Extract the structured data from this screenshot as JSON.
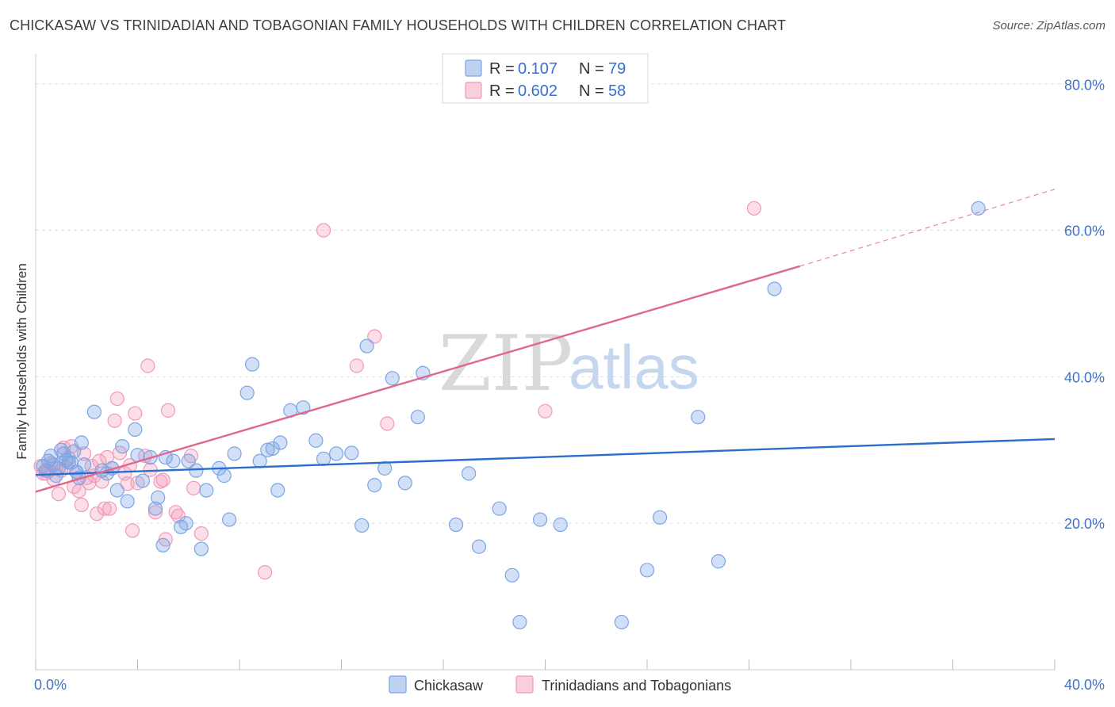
{
  "title": "CHICKASAW VS TRINIDADIAN AND TOBAGONIAN FAMILY HOUSEHOLDS WITH CHILDREN CORRELATION CHART",
  "source": "Source: ZipAtlas.com",
  "watermark": {
    "zip": "ZIP",
    "atlas": "atlas"
  },
  "colors": {
    "blue_fill": "rgba(124,165,228,0.35)",
    "blue_stroke": "#7ca5e4",
    "blue_line": "#2b6dcf",
    "pink_fill": "rgba(244,160,190,0.35)",
    "pink_stroke": "#ef9ab9",
    "pink_line": "#e0688f",
    "grid": "#dddddd",
    "tick_text": "#4472c4"
  },
  "legend": {
    "rows": [
      {
        "r_label": "R =",
        "r_value": "0.107",
        "n_label": "N =",
        "n_value": "79",
        "series": "blue"
      },
      {
        "r_label": "R =",
        "r_value": "0.602",
        "n_label": "N =",
        "n_value": "58",
        "series": "pink"
      }
    ]
  },
  "chart_data": {
    "type": "scatter",
    "title": "CHICKASAW VS TRINIDADIAN AND TOBAGONIAN FAMILY HOUSEHOLDS WITH CHILDREN CORRELATION CHART",
    "xlabel": "",
    "ylabel": "Family Households with Children",
    "xlim": [
      0,
      40
    ],
    "ylim": [
      0,
      83
    ],
    "x_tick_labels": [
      "0.0%",
      "40.0%"
    ],
    "y_ticks": [
      20,
      40,
      60,
      80
    ],
    "y_tick_labels": [
      "20.0%",
      "40.0%",
      "60.0%",
      "80.0%"
    ],
    "legend_position": "top-center",
    "series": [
      {
        "name": "Chickasaw",
        "color": "blue",
        "trend": {
          "x": [
            0,
            40
          ],
          "y": [
            26.6,
            31.5
          ],
          "dashed_from": null
        },
        "points": [
          [
            0.3,
            27.8
          ],
          [
            0.4,
            27.2
          ],
          [
            0.5,
            28.5
          ],
          [
            0.6,
            29.2
          ],
          [
            0.7,
            28.0
          ],
          [
            0.8,
            26.5
          ],
          [
            0.9,
            27.5
          ],
          [
            1.0,
            30.0
          ],
          [
            1.1,
            29.5
          ],
          [
            1.2,
            28.6
          ],
          [
            1.3,
            28.3
          ],
          [
            1.5,
            29.8
          ],
          [
            1.6,
            27.0
          ],
          [
            1.7,
            26.2
          ],
          [
            1.8,
            31.0
          ],
          [
            1.9,
            28.0
          ],
          [
            2.3,
            35.2
          ],
          [
            2.6,
            27.2
          ],
          [
            2.8,
            26.8
          ],
          [
            3.0,
            27.5
          ],
          [
            3.2,
            24.5
          ],
          [
            3.4,
            30.5
          ],
          [
            3.6,
            23.0
          ],
          [
            3.9,
            32.8
          ],
          [
            4.0,
            29.3
          ],
          [
            4.2,
            25.8
          ],
          [
            4.5,
            29.0
          ],
          [
            4.7,
            22.0
          ],
          [
            5.1,
            29.0
          ],
          [
            4.8,
            23.5
          ],
          [
            5.0,
            17.0
          ],
          [
            5.4,
            28.5
          ],
          [
            5.7,
            19.5
          ],
          [
            5.9,
            20.0
          ],
          [
            6.0,
            28.5
          ],
          [
            6.3,
            27.2
          ],
          [
            6.5,
            16.5
          ],
          [
            6.7,
            24.5
          ],
          [
            7.2,
            27.5
          ],
          [
            7.4,
            26.5
          ],
          [
            7.6,
            20.5
          ],
          [
            7.8,
            29.5
          ],
          [
            8.3,
            37.8
          ],
          [
            8.5,
            41.7
          ],
          [
            8.8,
            28.5
          ],
          [
            9.1,
            30.0
          ],
          [
            9.3,
            30.2
          ],
          [
            9.5,
            24.5
          ],
          [
            9.6,
            31.0
          ],
          [
            10.5,
            35.8
          ],
          [
            10.0,
            35.4
          ],
          [
            11.0,
            31.3
          ],
          [
            11.3,
            28.8
          ],
          [
            11.8,
            29.5
          ],
          [
            12.4,
            29.6
          ],
          [
            12.8,
            19.7
          ],
          [
            13.0,
            44.2
          ],
          [
            13.3,
            25.2
          ],
          [
            13.7,
            27.5
          ],
          [
            14.0,
            39.8
          ],
          [
            14.5,
            25.5
          ],
          [
            15.0,
            34.5
          ],
          [
            15.2,
            40.5
          ],
          [
            16.5,
            19.8
          ],
          [
            17.0,
            26.8
          ],
          [
            17.4,
            16.8
          ],
          [
            18.2,
            22.0
          ],
          [
            18.7,
            12.9
          ],
          [
            19.0,
            6.5
          ],
          [
            19.8,
            20.5
          ],
          [
            20.6,
            19.8
          ],
          [
            23.0,
            6.5
          ],
          [
            24.0,
            13.6
          ],
          [
            24.5,
            20.8
          ],
          [
            26.0,
            34.5
          ],
          [
            26.8,
            14.8
          ],
          [
            29.0,
            52.0
          ],
          [
            37.0,
            63.0
          ],
          [
            1.4,
            28.3
          ]
        ]
      },
      {
        "name": "Trinidadians and Tobagonians",
        "color": "pink",
        "trend": {
          "x": [
            0,
            30
          ],
          "y": [
            24.3,
            55.1
          ],
          "dashed_from": 30,
          "dashed_to_x": 40,
          "dashed_to_y": 65.6
        },
        "points": [
          [
            0.2,
            27.8
          ],
          [
            0.3,
            26.8
          ],
          [
            0.5,
            27.1
          ],
          [
            0.6,
            28.2
          ],
          [
            0.7,
            26.0
          ],
          [
            0.8,
            27.5
          ],
          [
            0.9,
            24.0
          ],
          [
            1.1,
            30.3
          ],
          [
            1.2,
            27.6
          ],
          [
            1.3,
            28.9
          ],
          [
            1.4,
            30.5
          ],
          [
            1.5,
            25.0
          ],
          [
            1.6,
            27.0
          ],
          [
            1.7,
            24.4
          ],
          [
            1.8,
            22.5
          ],
          [
            1.9,
            29.5
          ],
          [
            2.0,
            26.2
          ],
          [
            2.1,
            25.5
          ],
          [
            2.2,
            27.8
          ],
          [
            2.3,
            26.5
          ],
          [
            2.4,
            21.3
          ],
          [
            2.5,
            28.5
          ],
          [
            2.6,
            25.7
          ],
          [
            2.7,
            22.0
          ],
          [
            2.8,
            29.0
          ],
          [
            2.9,
            22.0
          ],
          [
            3.0,
            27.5
          ],
          [
            3.1,
            34.0
          ],
          [
            3.2,
            37.0
          ],
          [
            3.3,
            29.6
          ],
          [
            3.5,
            26.8
          ],
          [
            3.6,
            25.4
          ],
          [
            3.7,
            27.9
          ],
          [
            3.8,
            19.0
          ],
          [
            3.9,
            35.0
          ],
          [
            4.0,
            25.5
          ],
          [
            4.3,
            29.2
          ],
          [
            4.4,
            41.5
          ],
          [
            4.5,
            27.3
          ],
          [
            4.7,
            21.5
          ],
          [
            4.9,
            25.7
          ],
          [
            5.0,
            25.9
          ],
          [
            5.1,
            17.8
          ],
          [
            5.2,
            35.4
          ],
          [
            5.5,
            21.5
          ],
          [
            5.6,
            21.0
          ],
          [
            6.1,
            29.2
          ],
          [
            6.2,
            24.8
          ],
          [
            6.5,
            18.6
          ],
          [
            11.3,
            60.0
          ],
          [
            9.0,
            13.3
          ],
          [
            12.6,
            41.5
          ],
          [
            13.3,
            45.5
          ],
          [
            13.8,
            33.6
          ],
          [
            20.0,
            35.3
          ],
          [
            28.2,
            63.0
          ],
          [
            0.4,
            26.8
          ],
          [
            1.0,
            27.2
          ]
        ]
      }
    ]
  },
  "bottom_legend": [
    {
      "label": "Chickasaw",
      "series": "blue"
    },
    {
      "label": "Trinidadians and Tobagonians",
      "series": "pink"
    }
  ]
}
